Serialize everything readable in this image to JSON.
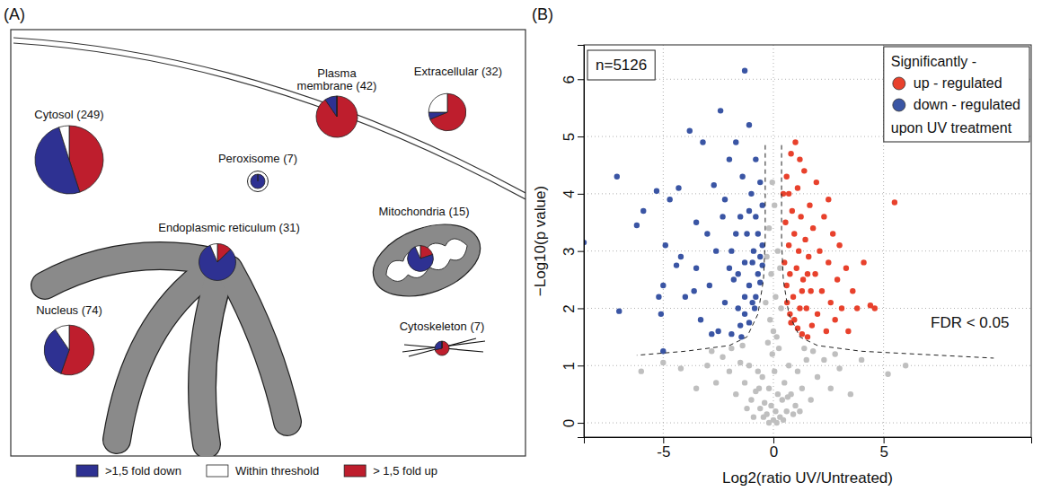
{
  "chart_data": [
    {
      "type": "pie",
      "panel": "(A)",
      "categories": [
        ">1,5 fold down",
        "Within threshold",
        "> 1,5 fold up"
      ],
      "colors": [
        "#2e3192",
        "#ffffff",
        "#be1e2d"
      ],
      "legend": "bottom",
      "pies": [
        {
          "label": "Cytosol (249)",
          "total": 249,
          "values": [
            125,
            12,
            112
          ]
        },
        {
          "label": "Plasma membrane (42)",
          "total": 42,
          "values": [
            4,
            0,
            38
          ]
        },
        {
          "label": "Extracellular (32)",
          "total": 32,
          "values": [
            2,
            8,
            22
          ]
        },
        {
          "label": "Peroxisome (7)",
          "total": 7,
          "values": [
            7,
            0,
            0
          ]
        },
        {
          "label": "Mitochondria (15)",
          "total": 15,
          "values": [
            11,
            1,
            3
          ]
        },
        {
          "label": "Endoplasmic reticulum (31)",
          "total": 31,
          "values": [
            25,
            2,
            4
          ]
        },
        {
          "label": "Cytoskeleton (7)",
          "total": 7,
          "values": [
            2,
            0,
            5
          ]
        },
        {
          "label": "Nucleus (74)",
          "total": 74,
          "values": [
            26,
            7,
            41
          ]
        }
      ]
    },
    {
      "type": "scatter",
      "panel": "(B)",
      "x_label": "Log2(ratio UV/Untreated)",
      "y_label": "−Log10(p value)",
      "xlim": [
        -8.6,
        11.7
      ],
      "ylim": [
        -0.25,
        6.6
      ],
      "xticks": [
        -5,
        0,
        5
      ],
      "yticks": [
        0,
        1,
        2,
        3,
        4,
        5,
        6
      ],
      "grid": true,
      "legend": "top-right",
      "legend_title": "Significantly -",
      "legend_note": "upon UV treatment",
      "annotations": [
        "n=5126",
        "FDR < 0.05"
      ],
      "series": [
        {
          "name": "up - regulated",
          "color": "#e8412c",
          "marker": "circle",
          "x": [
            0.45,
            0.62,
            0.5,
            0.55,
            0.6,
            0.6,
            0.75,
            0.7,
            0.75,
            0.8,
            0.8,
            0.85,
            0.9,
            0.95,
            1.0,
            1.1,
            1.05,
            1.1,
            1.15,
            1.2,
            1.25,
            1.3,
            1.35,
            1.4,
            1.45,
            1.5,
            1.55,
            1.6,
            1.65,
            1.7,
            1.75,
            1.8,
            1.9,
            1.95,
            2.0,
            2.1,
            2.2,
            2.3,
            2.4,
            2.5,
            2.6,
            2.7,
            2.8,
            2.9,
            3.0,
            3.1,
            3.3,
            3.4,
            3.6,
            3.8,
            4.1,
            4.4,
            4.6,
            5.5,
            1.3,
            0.95,
            1.2,
            2.5,
            0.7,
            1.55
          ],
          "values": [
            4.0,
            2.1,
            2.8,
            3.5,
            2.4,
            4.3,
            1.9,
            3.1,
            2.6,
            4.7,
            1.75,
            3.7,
            2.2,
            3.3,
            4.9,
            1.65,
            2.7,
            4.1,
            3.0,
            2.0,
            3.6,
            1.55,
            2.5,
            4.4,
            3.2,
            2.0,
            1.5,
            2.9,
            3.8,
            2.3,
            1.7,
            3.4,
            2.6,
            4.2,
            1.9,
            3.0,
            2.3,
            3.6,
            1.6,
            2.8,
            2.1,
            3.3,
            1.8,
            2.5,
            3.1,
            2.0,
            2.7,
            1.6,
            2.3,
            2.0,
            2.8,
            2.05,
            2.0,
            3.85,
            2.3,
            1.8,
            4.6,
            3.9,
            4.0,
            2.6
          ]
        },
        {
          "name": "down - regulated",
          "color": "#3a55a4",
          "marker": "circle",
          "x": [
            -8.6,
            -7.1,
            -7.0,
            -6.2,
            -5.9,
            -5.3,
            -5.2,
            -5.1,
            -5.0,
            -4.9,
            -4.7,
            -4.4,
            -4.3,
            -4.2,
            -3.8,
            -3.5,
            -3.5,
            -3.2,
            -3.0,
            -2.9,
            -2.7,
            -2.4,
            -2.3,
            -2.2,
            -2.2,
            -2.0,
            -1.9,
            -1.8,
            -1.7,
            -1.6,
            -1.5,
            -1.5,
            -1.4,
            -1.3,
            -1.2,
            -1.3,
            -1.1,
            -1.1,
            -1.0,
            -1.1,
            -0.9,
            -0.95,
            -0.8,
            -0.8,
            -0.85,
            -0.7,
            -0.7,
            -0.8,
            -0.6,
            -0.6,
            -0.6,
            -0.5,
            -0.5,
            -0.5,
            -1.3,
            -5.0,
            -3.3,
            -2.5,
            -4.0,
            -1.9,
            -1.45,
            -2.6,
            -3.6,
            -1.6,
            -1.1,
            -2.0,
            -1.7,
            -1.3,
            -0.95,
            -2.8
          ],
          "values": [
            3.15,
            4.3,
            1.95,
            3.45,
            3.7,
            4.05,
            2.2,
            1.9,
            2.4,
            3.1,
            3.9,
            2.75,
            4.1,
            2.9,
            5.1,
            3.5,
            2.7,
            4.9,
            3.3,
            2.4,
            4.15,
            5.45,
            3.6,
            3.9,
            2.1,
            4.6,
            3.0,
            2.5,
            4.9,
            2.0,
            3.6,
            1.7,
            4.3,
            2.8,
            3.3,
            1.9,
            5.2,
            2.4,
            4.0,
            1.75,
            3.0,
            2.1,
            4.6,
            3.6,
            2.0,
            2.6,
            3.3,
            2.2,
            4.2,
            2.9,
            2.45,
            3.8,
            3.1,
            2.75,
            6.15,
            1.25,
            1.8,
            1.6,
            2.2,
            1.55,
            1.5,
            3.0,
            2.3,
            2.6,
            3.7,
            2.7,
            3.3,
            2.2,
            2.8,
            1.55
          ]
        },
        {
          "color": "#bfbfbf",
          "marker": "circle",
          "x": [
            0,
            0.1,
            -0.1,
            0.2,
            -0.2,
            0.05,
            -0.05,
            0.15,
            -0.15,
            0.1,
            -0.1,
            0.2,
            -0.2,
            0.05,
            0.3,
            -0.3,
            0.4,
            -0.4,
            0.5,
            -0.5,
            0.6,
            -0.6,
            0.7,
            -0.7,
            0.8,
            -0.8,
            1.0,
            -1.0,
            1.1,
            -1.1,
            1.3,
            -1.3,
            1.5,
            -1.5,
            1.7,
            -1.7,
            2.0,
            -2.0,
            2.3,
            -2.3,
            2.6,
            -2.6,
            3.0,
            -3.0,
            3.5,
            -3.5,
            4.0,
            -4.2,
            -6.0,
            5.2,
            0.25,
            -0.25,
            0.35,
            -0.35,
            0.3,
            -0.3,
            0.15,
            -0.2,
            0.45,
            -0.45,
            0.9,
            -0.9,
            1.2,
            -1.2,
            0.65,
            -0.65,
            1.8,
            -1.9,
            1.4,
            -1.4,
            2.8,
            -2.8,
            -5.0,
            6.0,
            -0.05,
            0.0
          ],
          "values": [
            0.05,
            0.2,
            0.3,
            0.5,
            0.6,
            0.9,
            1.2,
            1.5,
            1.8,
            2.2,
            2.6,
            3.0,
            3.4,
            3.8,
            0.1,
            0.15,
            0.4,
            0.35,
            0.7,
            0.8,
            0.2,
            0.25,
            1.0,
            0.9,
            0.5,
            0.55,
            0.3,
            0.4,
            0.9,
            1.0,
            0.6,
            0.7,
            1.1,
            1.05,
            0.4,
            0.5,
            0.8,
            0.9,
            1.1,
            1.15,
            0.6,
            0.7,
            0.95,
            1.0,
            0.5,
            0.6,
            1.1,
            0.95,
            0.9,
            0.85,
            1.3,
            1.4,
            2.0,
            2.1,
            2.7,
            2.9,
            0.0,
            0.0,
            0.05,
            0.1,
            0.15,
            0.1,
            0.2,
            0.25,
            0.45,
            0.6,
            1.25,
            1.3,
            1.3,
            1.35,
            1.2,
            1.25,
            1.05,
            1.0,
            4.2,
            1.6
          ]
        }
      ],
      "threshold_lines": [
        {
          "line_style": "dashed",
          "x": [
            -0.37,
            -0.37,
            -0.45,
            -0.7,
            -1.2,
            -2,
            -4,
            -6.2
          ],
          "values": [
            4.85,
            3.2,
            2.5,
            1.9,
            1.5,
            1.35,
            1.25,
            1.18
          ]
        },
        {
          "line_style": "dashed",
          "x": [
            0.37,
            0.37,
            0.45,
            0.7,
            1.2,
            2,
            4,
            10
          ],
          "values": [
            4.85,
            3.2,
            2.5,
            1.9,
            1.5,
            1.35,
            1.25,
            1.13
          ]
        }
      ]
    }
  ]
}
